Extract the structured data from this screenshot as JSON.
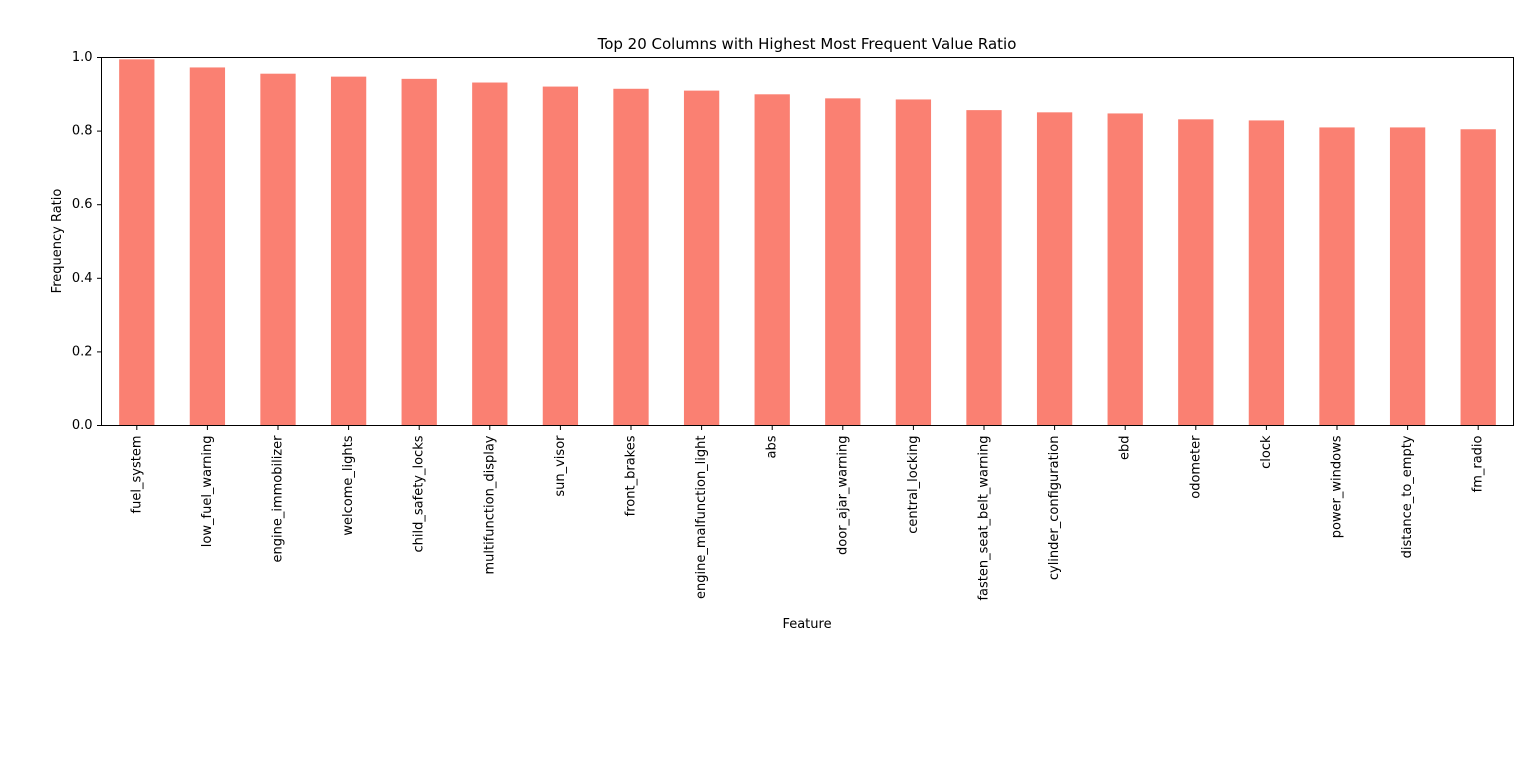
{
  "chart_data": {
    "type": "bar",
    "title": "Top 20 Columns with Highest Most Frequent Value Ratio",
    "xlabel": "Feature",
    "ylabel": "Frequency Ratio",
    "ylim": [
      0,
      1.0
    ],
    "yticks": [
      "0.0",
      "0.2",
      "0.4",
      "0.6",
      "0.8",
      "1.0"
    ],
    "grid": false,
    "legend": "none",
    "bar_color": "#fa8072",
    "categories": [
      "fuel_system",
      "low_fuel_warning",
      "engine_immobilizer",
      "welcome_lights",
      "child_safety_locks",
      "multifunction_display",
      "sun_visor",
      "front_brakes",
      "engine_malfunction_light",
      "abs",
      "door_ajar_warning",
      "central_locking",
      "fasten_seat_belt_warning",
      "cylinder_configuration",
      "ebd",
      "odometer",
      "clock",
      "power_windows",
      "distance_to_empty",
      "fm_radio"
    ],
    "values": [
      0.995,
      0.973,
      0.956,
      0.948,
      0.942,
      0.932,
      0.921,
      0.915,
      0.91,
      0.9,
      0.889,
      0.886,
      0.857,
      0.851,
      0.848,
      0.832,
      0.829,
      0.81,
      0.81,
      0.805
    ]
  }
}
